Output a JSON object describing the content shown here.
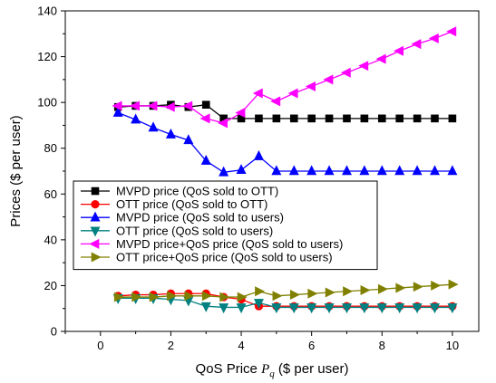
{
  "chart_data": {
    "type": "line",
    "xlabel": "QoS Price",
    "xlabel_symbol": "P",
    "xlabel_subscript": "q",
    "xlabel_unit": "($ per user)",
    "ylabel": "Prices ($ per user)",
    "xlim": [
      -1,
      10.75
    ],
    "ylim": [
      0,
      140
    ],
    "xticks": [
      0,
      2,
      4,
      6,
      8,
      10
    ],
    "yticks": [
      0,
      20,
      40,
      60,
      80,
      100,
      120,
      140
    ],
    "grid": false,
    "legend_position": "center-left",
    "x": [
      0.5,
      1.0,
      1.5,
      2.0,
      2.5,
      3.0,
      3.5,
      4.0,
      4.5,
      5.0,
      5.5,
      6.0,
      6.5,
      7.0,
      7.5,
      8.0,
      8.5,
      9.0,
      9.5,
      10.0
    ],
    "series": [
      {
        "name": "MVPD price (QoS sold to OTT)",
        "color": "#000000",
        "marker": "square",
        "values": [
          98,
          98.5,
          98.5,
          99,
          98,
          99,
          93,
          93,
          93,
          93,
          93,
          93,
          93,
          93,
          93,
          93,
          93,
          93,
          93,
          93
        ]
      },
      {
        "name": "OTT price (QoS sold to OTT)",
        "color": "#ff0000",
        "marker": "circle",
        "values": [
          15.5,
          16,
          16,
          16.5,
          16.5,
          16.5,
          15,
          14,
          11,
          11,
          11,
          11,
          11,
          11,
          11,
          11,
          11,
          11,
          11,
          11
        ]
      },
      {
        "name": "MVPD price (QoS sold to users)",
        "color": "#0000ff",
        "marker": "triangle-up",
        "values": [
          95.5,
          92.5,
          89,
          86,
          83.5,
          74.5,
          69.5,
          70.5,
          76.5,
          70,
          70,
          70,
          70,
          70,
          70,
          70,
          70,
          70,
          70,
          70
        ]
      },
      {
        "name": "OTT price (QoS sold to users)",
        "color": "#008080",
        "marker": "triangle-down",
        "values": [
          14.5,
          14.5,
          14.5,
          14,
          13.5,
          11,
          10.5,
          10.5,
          12.5,
          10.5,
          10.5,
          10.5,
          10.5,
          10.5,
          10.5,
          10.5,
          10.5,
          10.5,
          10.5,
          10.5
        ]
      },
      {
        "name": "MVPD price+QoS price (QoS sold to users)",
        "color": "#ff00ff",
        "marker": "triangle-left",
        "values": [
          98.5,
          98.5,
          98.5,
          98,
          98.5,
          93,
          91,
          95.5,
          104,
          100.5,
          104,
          107,
          110,
          113,
          116,
          119,
          122.5,
          125.5,
          128,
          131
        ]
      },
      {
        "name": "OTT price+QoS price (QoS sold to users)",
        "color": "#808000",
        "marker": "triangle-right",
        "values": [
          15,
          15,
          15,
          15.5,
          15.5,
          15.5,
          15,
          15,
          17.5,
          15.5,
          16,
          16.5,
          17,
          17.5,
          18,
          18.5,
          19,
          19.5,
          20,
          20.5
        ]
      }
    ]
  }
}
